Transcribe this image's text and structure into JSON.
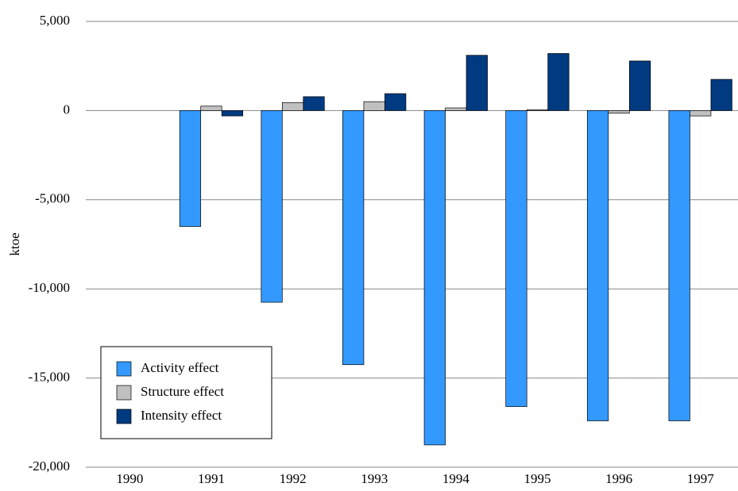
{
  "chart_data": {
    "type": "bar",
    "y_label": "ktoe",
    "categories": [
      "1990",
      "1991",
      "1992",
      "1993",
      "1994",
      "1995",
      "1996",
      "1997"
    ],
    "series": [
      {
        "name": "Activity effect",
        "color": "#3399ff",
        "values": [
          0,
          -6500,
          -10750,
          -14250,
          -18750,
          -16600,
          -17400,
          -17400
        ]
      },
      {
        "name": "Structure effect",
        "color": "#c0c0c0",
        "values": [
          0,
          250,
          450,
          500,
          150,
          50,
          -150,
          -300
        ]
      },
      {
        "name": "Intensity effect",
        "color": "#003a80",
        "values": [
          0,
          -300,
          780,
          950,
          3100,
          3200,
          2780,
          1750
        ]
      }
    ],
    "ylim": [
      -20000,
      5000
    ],
    "yticks": [
      {
        "value": -20000,
        "label": "-20,000"
      },
      {
        "value": -15000,
        "label": "-15,000"
      },
      {
        "value": -10000,
        "label": "-10,000"
      },
      {
        "value": -5000,
        "label": "-5,000"
      },
      0,
      {
        "value": 5000,
        "label": "5,000"
      }
    ],
    "grid": true,
    "legend": "lower left"
  }
}
